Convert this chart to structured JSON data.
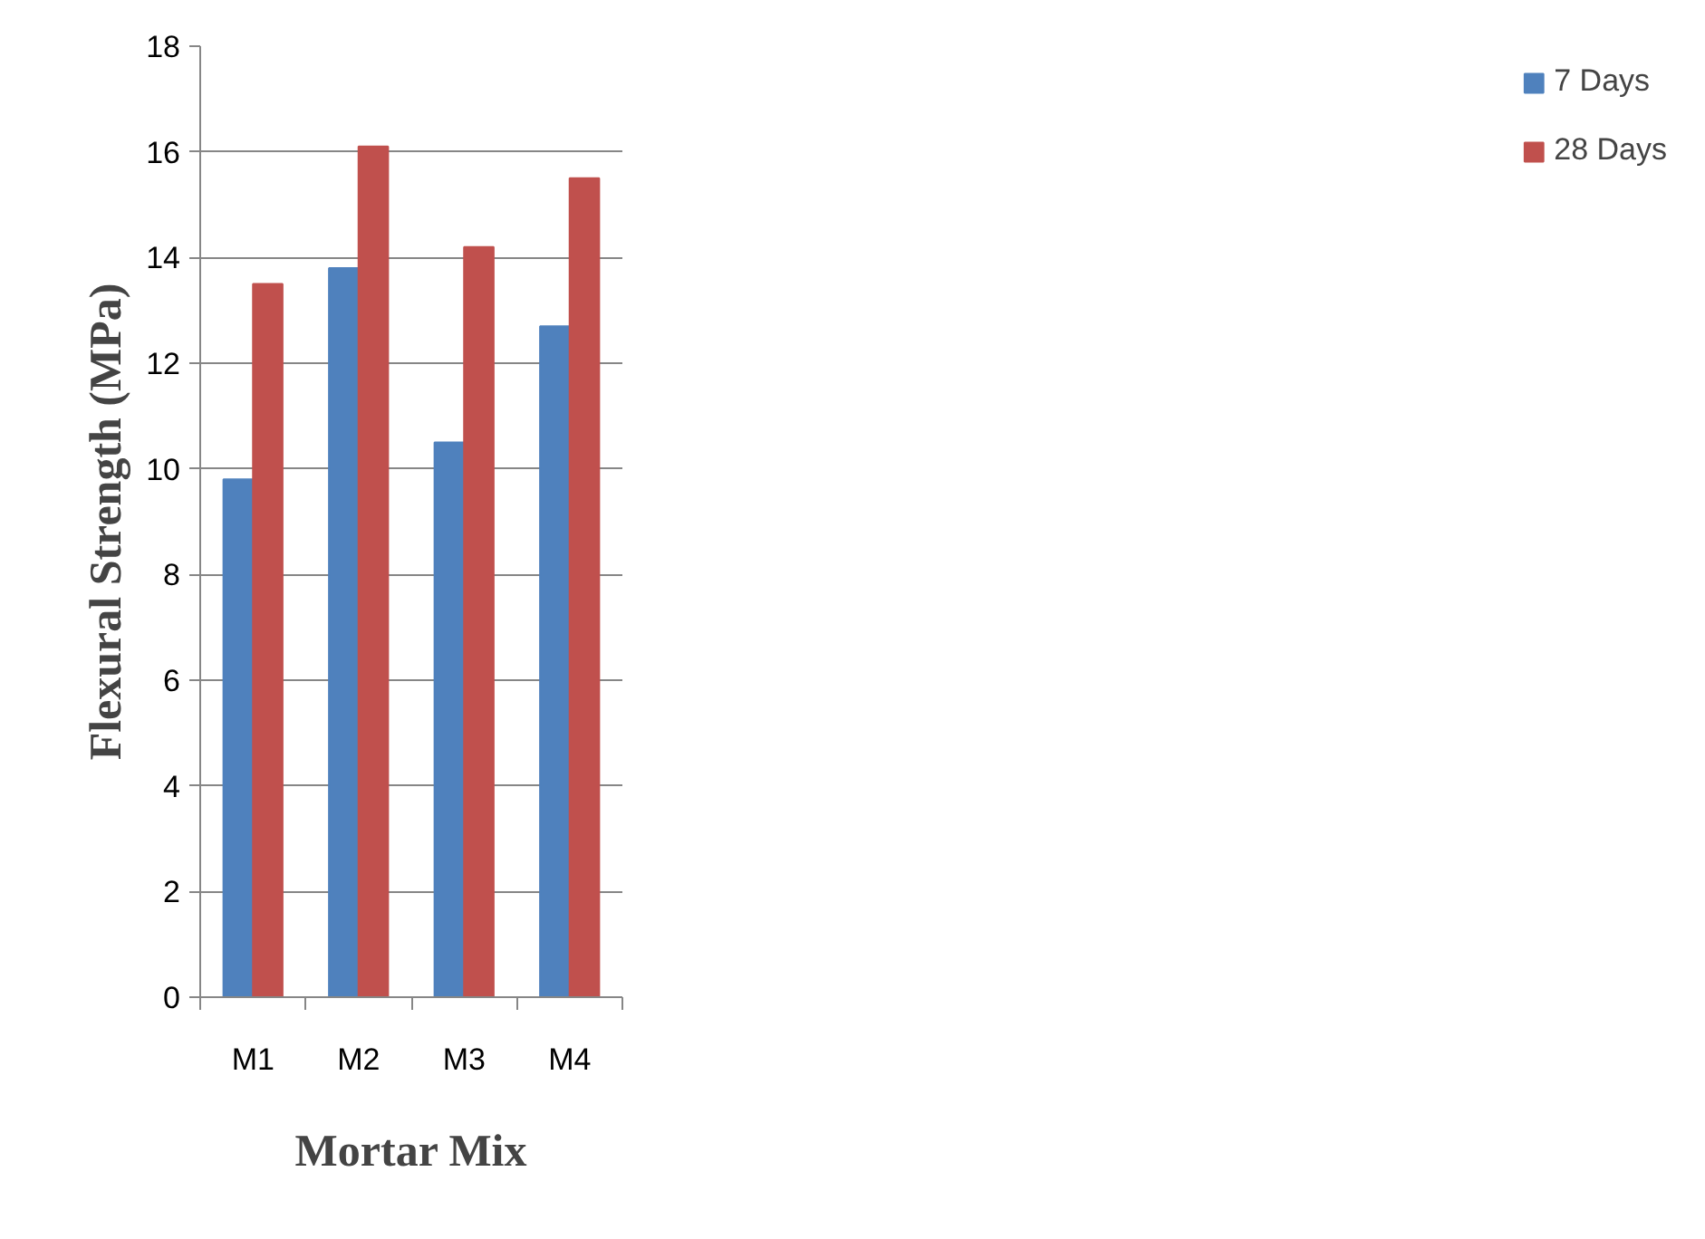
{
  "chart_data": {
    "type": "bar",
    "xlabel": "Mortar Mix",
    "ylabel": "Flexural Strength (MPa)",
    "categories": [
      "M1",
      "M2",
      "M3",
      "M4"
    ],
    "series": [
      {
        "name": "7 Days",
        "color": "#4f81bd",
        "values": [
          9.8,
          13.8,
          10.5,
          12.7
        ]
      },
      {
        "name": "28 Days",
        "color": "#c0504d",
        "values": [
          13.5,
          16.1,
          14.2,
          15.5
        ]
      }
    ],
    "ylim": [
      0,
      18
    ],
    "yticks": [
      0,
      2,
      4,
      6,
      8,
      10,
      12,
      14,
      16,
      18
    ],
    "grid": "y",
    "legend": "right"
  }
}
